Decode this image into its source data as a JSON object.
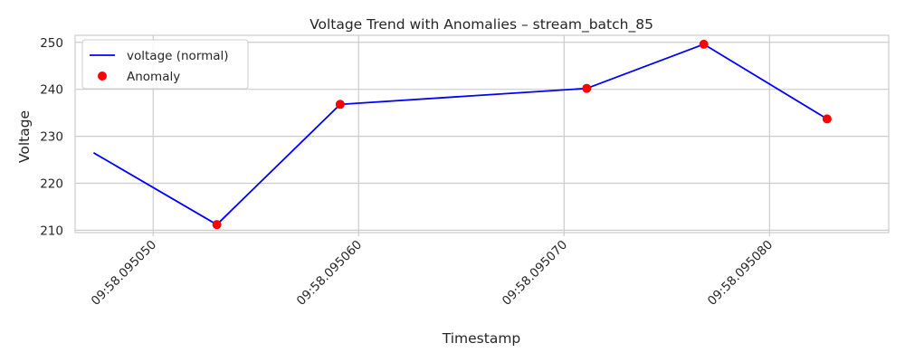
{
  "chart_data": {
    "type": "line",
    "title": "Voltage Trend with Anomalies – stream_batch_85",
    "xlabel": "Timestamp",
    "ylabel": "Voltage",
    "xlim": [
      46.2,
      85.8
    ],
    "ylim": [
      209.5,
      251.5
    ],
    "x_ticks": [
      {
        "value": 50,
        "label": "09:58.095050"
      },
      {
        "value": 60,
        "label": "09:58.095060"
      },
      {
        "value": 70,
        "label": "09:58.095070"
      },
      {
        "value": 80,
        "label": "09:58.095080"
      }
    ],
    "y_ticks": [
      210,
      220,
      230,
      240,
      250
    ],
    "grid": true,
    "legend_position": "top-left",
    "series": [
      {
        "name": "voltage (normal)",
        "type": "line",
        "color": "#0000ff",
        "x": [
          47.1,
          53.1,
          59.1,
          71.1,
          76.8,
          82.8
        ],
        "y": [
          226.5,
          211.2,
          236.8,
          240.2,
          249.6,
          233.7
        ]
      },
      {
        "name": "Anomaly",
        "type": "scatter",
        "color": "#ff0000",
        "x": [
          53.1,
          59.1,
          71.1,
          76.8,
          82.8
        ],
        "y": [
          211.2,
          236.8,
          240.2,
          249.6,
          233.7
        ]
      }
    ]
  }
}
